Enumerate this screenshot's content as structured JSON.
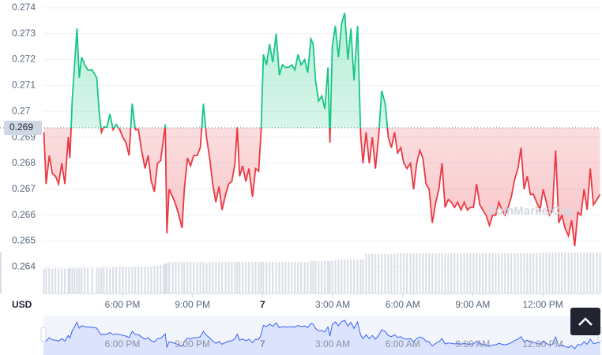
{
  "chart_data": {
    "type": "line",
    "x_label": "USD",
    "watermark": "CoinMarketCap",
    "xlim": [
      -563,
      868
    ],
    "xticks": [
      {
        "value": -360,
        "label": "6:00 PM"
      },
      {
        "value": -180,
        "label": "9:00 PM"
      },
      {
        "value": 0,
        "label": "7"
      },
      {
        "value": 180,
        "label": "3:00 AM"
      },
      {
        "value": 360,
        "label": "6:00 AM"
      },
      {
        "value": 540,
        "label": "9:00 AM"
      },
      {
        "value": 720,
        "label": "12:00 PM"
      }
    ],
    "ylim": [
      0.2638,
      0.2743
    ],
    "yticks": [
      0.264,
      0.265,
      0.266,
      0.267,
      0.268,
      0.269,
      0.27,
      0.271,
      0.272,
      0.273,
      0.274
    ],
    "grid": true,
    "reference": {
      "value": 0.26937,
      "label": "0.269"
    },
    "colors": {
      "up": "#16c784",
      "down": "#ea3943"
    },
    "x": [
      -562,
      -556,
      -548,
      -540,
      -532,
      -524,
      -516,
      -508,
      -499,
      -495,
      -489,
      -483,
      -477,
      -471,
      -465,
      -457,
      -449,
      -438,
      -426,
      -420,
      -414,
      -408,
      -400,
      -392,
      -384,
      -376,
      -367,
      -359,
      -351,
      -343,
      -335,
      -327,
      -319,
      -311,
      -302,
      -294,
      -286,
      -278,
      -270,
      -262,
      -254,
      -250,
      -246,
      -240,
      -231,
      -223,
      -215,
      -207,
      -201,
      -193,
      -185,
      -177,
      -168,
      -160,
      -152,
      -144,
      -136,
      -128,
      -120,
      -112,
      -104,
      -95,
      -87,
      -79,
      -71,
      -65,
      -59,
      -51,
      -43,
      -35,
      -26,
      -18,
      -10,
      -4,
      2,
      10,
      18,
      26,
      35,
      43,
      51,
      59,
      67,
      75,
      83,
      91,
      99,
      108,
      116,
      124,
      130,
      136,
      144,
      152,
      160,
      168,
      173,
      179,
      187,
      195,
      203,
      211,
      219,
      227,
      235,
      244,
      252,
      258,
      266,
      274,
      282,
      290,
      298,
      306,
      315,
      323,
      331,
      339,
      347,
      355,
      363,
      371,
      380,
      388,
      396,
      404,
      412,
      420,
      428,
      436,
      445,
      453,
      461,
      469,
      477,
      485,
      493,
      501,
      510,
      518,
      526,
      534,
      542,
      550,
      558,
      566,
      574,
      583,
      591,
      599,
      607,
      615,
      623,
      631,
      639,
      648,
      656,
      664,
      672,
      680,
      688,
      696,
      704,
      713,
      721,
      729,
      737,
      745,
      753,
      761,
      769,
      777,
      786,
      794,
      802,
      810,
      818,
      826,
      834,
      842,
      850,
      859,
      867
    ],
    "values": [
      0.2692,
      0.2672,
      0.2683,
      0.2676,
      0.2675,
      0.2672,
      0.268,
      0.2672,
      0.269,
      0.2682,
      0.2705,
      0.2718,
      0.2732,
      0.2713,
      0.2721,
      0.2718,
      0.2716,
      0.2716,
      0.2713,
      0.27,
      0.2692,
      0.2694,
      0.2694,
      0.2699,
      0.2693,
      0.2695,
      0.2693,
      0.269,
      0.2688,
      0.2683,
      0.2703,
      0.2693,
      0.2693,
      0.2685,
      0.2678,
      0.2683,
      0.2673,
      0.2669,
      0.268,
      0.2681,
      0.269,
      0.2695,
      0.2653,
      0.267,
      0.2667,
      0.2664,
      0.266,
      0.2655,
      0.267,
      0.2682,
      0.2679,
      0.2683,
      0.2683,
      0.2686,
      0.2703,
      0.269,
      0.2682,
      0.2672,
      0.2665,
      0.2671,
      0.2662,
      0.2668,
      0.2672,
      0.2673,
      0.268,
      0.2694,
      0.2675,
      0.2679,
      0.2673,
      0.2678,
      0.2667,
      0.2678,
      0.2677,
      0.2692,
      0.2722,
      0.2718,
      0.2726,
      0.2719,
      0.273,
      0.2714,
      0.2718,
      0.2717,
      0.2717,
      0.2718,
      0.2716,
      0.2722,
      0.2718,
      0.272,
      0.2715,
      0.2728,
      0.2726,
      0.2712,
      0.2704,
      0.2706,
      0.2701,
      0.2717,
      0.2688,
      0.2725,
      0.2733,
      0.2721,
      0.2734,
      0.2738,
      0.272,
      0.2732,
      0.2712,
      0.2733,
      0.2691,
      0.268,
      0.2692,
      0.268,
      0.269,
      0.2678,
      0.269,
      0.2708,
      0.2703,
      0.269,
      0.2686,
      0.2692,
      0.2684,
      0.2686,
      0.268,
      0.2678,
      0.268,
      0.267,
      0.268,
      0.2685,
      0.2682,
      0.2672,
      0.267,
      0.2657,
      0.2665,
      0.267,
      0.268,
      0.2663,
      0.2666,
      0.2665,
      0.2663,
      0.2665,
      0.2662,
      0.2665,
      0.2662,
      0.2663,
      0.2663,
      0.2672,
      0.2664,
      0.2662,
      0.266,
      0.2656,
      0.266,
      0.266,
      0.2665,
      0.2662,
      0.266,
      0.2663,
      0.2667,
      0.2674,
      0.2678,
      0.2686,
      0.267,
      0.2675,
      0.2668,
      0.2668,
      0.2665,
      0.2662,
      0.267,
      0.2665,
      0.266,
      0.2662,
      0.2685,
      0.2657,
      0.266,
      0.2655,
      0.2652,
      0.2658,
      0.2648,
      0.2661,
      0.266,
      0.267,
      0.2662,
      0.2678,
      0.2664,
      0.2666,
      0.2668
    ],
    "volume": {
      "color": "#d9dde5",
      "lim": [
        0,
        100
      ],
      "values": [
        31,
        32,
        32,
        31,
        32,
        32,
        32,
        31,
        32,
        32,
        32,
        32,
        32,
        32,
        32,
        33,
        32,
        32,
        32,
        32,
        32,
        33,
        33,
        32,
        33,
        33,
        33,
        33,
        33,
        33,
        33,
        33,
        34,
        34,
        34,
        34,
        34,
        35,
        35,
        36,
        37,
        38,
        39,
        40,
        40,
        40,
        40,
        40,
        40,
        40,
        40,
        40,
        40,
        40,
        40,
        39,
        40,
        40,
        40,
        40,
        40,
        40,
        40,
        40,
        40,
        40,
        40,
        40,
        40,
        40,
        40,
        40,
        40,
        40,
        40,
        40,
        40,
        40,
        40,
        40,
        40,
        40,
        40,
        40,
        40,
        40,
        40,
        40,
        40,
        41,
        41,
        41,
        41,
        41,
        41,
        41,
        41,
        42,
        42,
        43,
        43,
        43,
        43,
        43,
        43,
        43,
        43,
        43,
        50,
        50,
        50,
        50,
        50,
        50,
        50,
        50,
        50,
        50,
        51,
        51,
        51,
        51,
        51,
        51,
        51,
        51,
        51,
        51,
        51,
        51,
        51,
        51,
        51,
        51,
        51,
        51,
        51,
        51,
        51,
        51,
        51,
        51,
        51,
        51,
        51,
        51,
        51,
        51,
        51,
        51,
        51,
        51,
        51,
        51,
        51,
        51,
        51,
        51,
        51,
        51,
        51,
        51,
        51,
        52,
        52,
        52,
        52,
        52,
        52,
        52,
        52,
        52,
        52,
        52,
        52,
        52,
        52,
        52,
        52,
        52,
        52,
        52,
        52,
        52
      ]
    },
    "navigator": {
      "color": "#3861fb"
    }
  }
}
